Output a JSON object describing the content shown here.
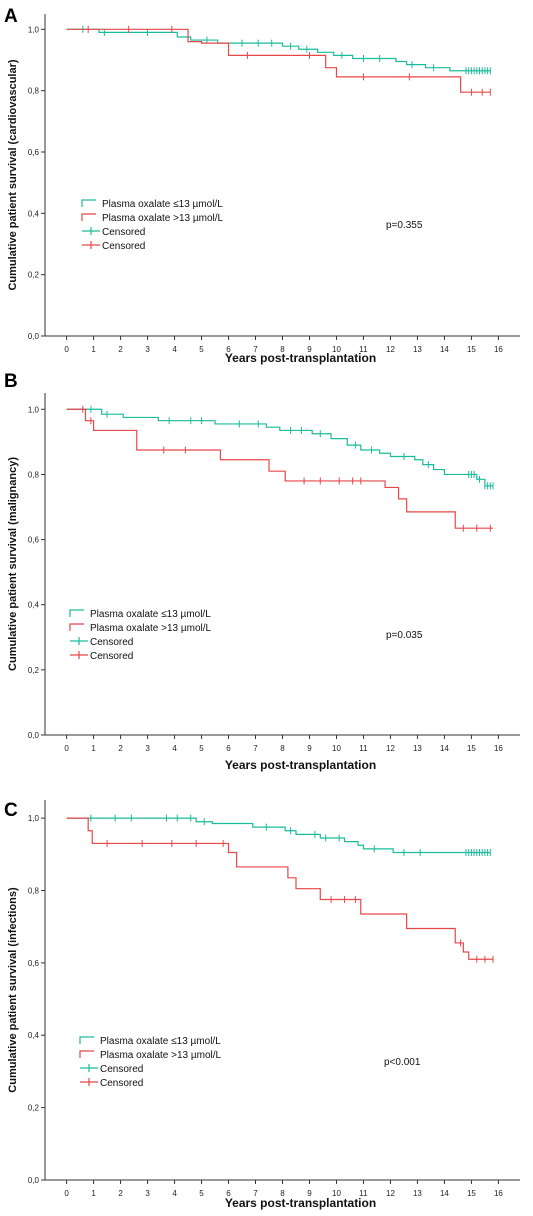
{
  "colors": {
    "low": "#1abc9c",
    "high": "#e8474a",
    "axis": "#333333"
  },
  "chart_data": [
    {
      "type": "line",
      "panel": "A",
      "xlabel": "Years post-transplantation",
      "ylabel": "Cumulative patient survival (cardiovascular)",
      "xlim": [
        -0.8,
        16.8
      ],
      "ylim": [
        0,
        1.05
      ],
      "xticks": [
        "0",
        "1",
        "2",
        "3",
        "4",
        "5",
        "6",
        "7",
        "8",
        "9",
        "10",
        "11",
        "12",
        "13",
        "14",
        "15",
        "16"
      ],
      "yticks": [
        "0,0",
        "0,2",
        "0,4",
        "0,6",
        "0,8",
        "1,0"
      ],
      "legend": [
        "Plasma oxalate ≤13 µmol/L",
        "Plasma oxalate >13 µmol/L",
        "Censored",
        "Censored"
      ],
      "pvalue": "p=0.355",
      "series": [
        {
          "name": "Plasma oxalate ≤13 µmol/L",
          "color_key": "low",
          "steps": [
            [
              0,
              1.0
            ],
            [
              1.2,
              0.99
            ],
            [
              4.1,
              0.975
            ],
            [
              4.6,
              0.965
            ],
            [
              5.6,
              0.955
            ],
            [
              8.0,
              0.945
            ],
            [
              8.6,
              0.935
            ],
            [
              9.3,
              0.925
            ],
            [
              9.9,
              0.915
            ],
            [
              10.6,
              0.905
            ],
            [
              12.2,
              0.895
            ],
            [
              12.6,
              0.885
            ],
            [
              13.3,
              0.875
            ],
            [
              14.2,
              0.865
            ],
            [
              15.7,
              0.865
            ]
          ],
          "censored": [
            0.6,
            1.4,
            3.0,
            5.2,
            6.5,
            7.1,
            7.6,
            8.3,
            8.9,
            10.2,
            11.0,
            11.6,
            12.8,
            13.6,
            14.8,
            14.9,
            15.0,
            15.1,
            15.2,
            15.3,
            15.4,
            15.5,
            15.6,
            15.7
          ]
        },
        {
          "name": "Plasma oxalate >13 µmol/L",
          "color_key": "high",
          "steps": [
            [
              0,
              1.0
            ],
            [
              4.5,
              0.96
            ],
            [
              5.0,
              0.955
            ],
            [
              6.0,
              0.915
            ],
            [
              9.6,
              0.875
            ],
            [
              10.0,
              0.845
            ],
            [
              14.6,
              0.795
            ],
            [
              15.7,
              0.795
            ]
          ],
          "censored": [
            0.8,
            2.3,
            3.9,
            6.7,
            9.0,
            11.0,
            12.7,
            15.0,
            15.4,
            15.7
          ]
        }
      ]
    },
    {
      "type": "line",
      "panel": "B",
      "xlabel": "Years post-transplantation",
      "ylabel": "Cumulative patient survival (malignancy)",
      "xlim": [
        -0.8,
        16.8
      ],
      "ylim": [
        0,
        1.05
      ],
      "xticks": [
        "0",
        "1",
        "2",
        "3",
        "4",
        "5",
        "6",
        "7",
        "8",
        "9",
        "10",
        "11",
        "12",
        "13",
        "14",
        "15",
        "16"
      ],
      "yticks": [
        "0,0",
        "0,2",
        "0,4",
        "0,6",
        "0,8",
        "1,0"
      ],
      "legend": [
        "Plasma oxalate ≤13 µmol/L",
        "Plasma oxalate >13 µmol/L",
        "Censored",
        "Censored"
      ],
      "pvalue": "p=0.035",
      "series": [
        {
          "name": "Plasma oxalate ≤13 µmol/L",
          "color_key": "low",
          "steps": [
            [
              0,
              1.0
            ],
            [
              1.3,
              0.985
            ],
            [
              2.1,
              0.975
            ],
            [
              3.4,
              0.965
            ],
            [
              5.5,
              0.955
            ],
            [
              7.4,
              0.945
            ],
            [
              7.9,
              0.935
            ],
            [
              9.1,
              0.925
            ],
            [
              9.8,
              0.91
            ],
            [
              10.4,
              0.89
            ],
            [
              10.9,
              0.875
            ],
            [
              11.6,
              0.865
            ],
            [
              12.0,
              0.855
            ],
            [
              12.9,
              0.845
            ],
            [
              13.2,
              0.83
            ],
            [
              13.6,
              0.815
            ],
            [
              14.0,
              0.8
            ],
            [
              15.2,
              0.785
            ],
            [
              15.5,
              0.765
            ],
            [
              15.8,
              0.765
            ]
          ],
          "censored": [
            0.9,
            1.5,
            3.8,
            4.6,
            5.0,
            6.4,
            7.1,
            8.3,
            8.7,
            9.4,
            10.7,
            11.3,
            12.5,
            13.4,
            14.9,
            15.0,
            15.1,
            15.3,
            15.5,
            15.6,
            15.7,
            15.8
          ]
        },
        {
          "name": "Plasma oxalate >13 µmol/L",
          "color_key": "high",
          "steps": [
            [
              0,
              1.0
            ],
            [
              0.7,
              0.965
            ],
            [
              1.0,
              0.935
            ],
            [
              2.6,
              0.875
            ],
            [
              5.7,
              0.845
            ],
            [
              7.5,
              0.81
            ],
            [
              8.1,
              0.78
            ],
            [
              11.8,
              0.76
            ],
            [
              12.3,
              0.725
            ],
            [
              12.6,
              0.685
            ],
            [
              14.4,
              0.635
            ],
            [
              15.8,
              0.635
            ]
          ],
          "censored": [
            0.6,
            0.9,
            3.6,
            4.4,
            8.8,
            9.4,
            10.1,
            10.6,
            10.9,
            14.7,
            15.2,
            15.7
          ]
        }
      ]
    },
    {
      "type": "line",
      "panel": "C",
      "xlabel": "Years post-transplantation",
      "ylabel": "Cumulative patient survival (infections)",
      "xlim": [
        -0.8,
        16.8
      ],
      "ylim": [
        0,
        1.05
      ],
      "xticks": [
        "0",
        "1",
        "2",
        "3",
        "4",
        "5",
        "6",
        "7",
        "8",
        "9",
        "10",
        "11",
        "12",
        "13",
        "14",
        "15",
        "16"
      ],
      "yticks": [
        "0,0",
        "0,2",
        "0,4",
        "0,6",
        "0,8",
        "1,0"
      ],
      "legend": [
        "Plasma oxalate ≤13 µmol/L",
        "Plasma oxalate >13 µmol/L",
        "Censored",
        "Censored"
      ],
      "pvalue": "p<0.001",
      "series": [
        {
          "name": "Plasma oxalate ≤13 µmol/L",
          "color_key": "low",
          "steps": [
            [
              0,
              1.0
            ],
            [
              4.8,
              0.99
            ],
            [
              5.4,
              0.985
            ],
            [
              6.9,
              0.975
            ],
            [
              8.1,
              0.965
            ],
            [
              8.5,
              0.955
            ],
            [
              9.4,
              0.945
            ],
            [
              10.3,
              0.935
            ],
            [
              10.8,
              0.925
            ],
            [
              11.0,
              0.915
            ],
            [
              12.1,
              0.905
            ],
            [
              15.7,
              0.905
            ]
          ],
          "censored": [
            0.9,
            1.8,
            2.4,
            3.7,
            4.1,
            4.6,
            5.1,
            7.4,
            8.3,
            9.2,
            9.6,
            10.1,
            11.4,
            12.5,
            13.1,
            14.8,
            14.9,
            15.0,
            15.1,
            15.2,
            15.3,
            15.4,
            15.5,
            15.6,
            15.7
          ]
        },
        {
          "name": "Plasma oxalate >13 µmol/L",
          "color_key": "high",
          "steps": [
            [
              0,
              1.0
            ],
            [
              0.8,
              0.965
            ],
            [
              0.95,
              0.93
            ],
            [
              6.0,
              0.905
            ],
            [
              6.3,
              0.865
            ],
            [
              8.2,
              0.835
            ],
            [
              8.5,
              0.805
            ],
            [
              9.4,
              0.775
            ],
            [
              10.9,
              0.735
            ],
            [
              12.6,
              0.695
            ],
            [
              14.4,
              0.655
            ],
            [
              14.7,
              0.63
            ],
            [
              14.9,
              0.61
            ],
            [
              15.8,
              0.61
            ]
          ],
          "censored": [
            1.5,
            2.8,
            3.9,
            4.8,
            5.8,
            9.8,
            10.3,
            10.7,
            14.6,
            15.2,
            15.5,
            15.8
          ]
        }
      ]
    }
  ]
}
